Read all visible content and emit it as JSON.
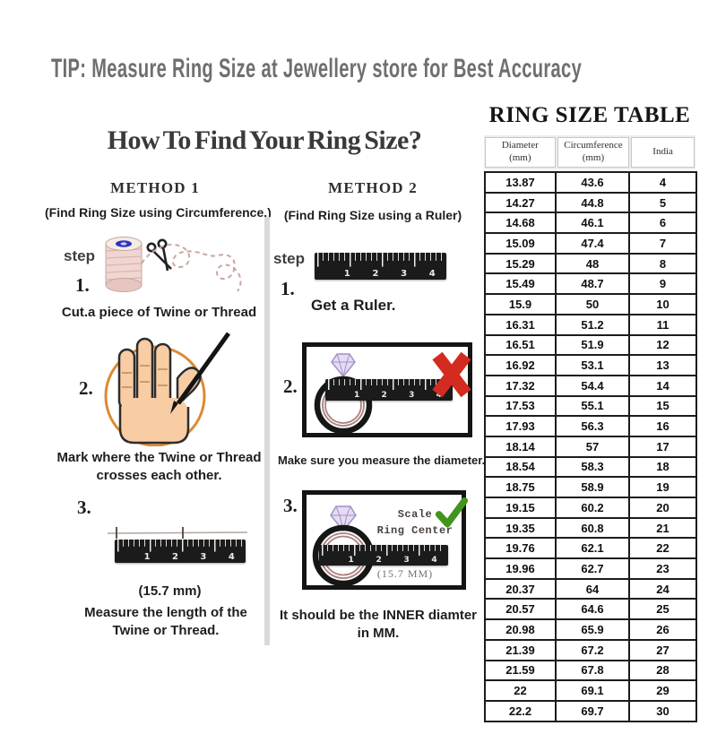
{
  "tip_heading": "TIP: Measure Ring Size at Jewellery store for Best Accuracy",
  "howto": {
    "title": "How To Find Your Ring Size?",
    "method1": {
      "heading": "METHOD 1",
      "subheading": "(Find Ring Size using Circumference.)",
      "step_label": "step",
      "step1_num": "1.",
      "step1_caption": "Cut.a piece of Twine or Thread",
      "step2_num": "2.",
      "step2_caption_line1": "Mark where the Twine or Thread",
      "step2_caption_line2": "crosses each other.",
      "step3_num": "3.",
      "step3_measure": "(15.7 mm)",
      "step3_caption_line1": "Measure the length of the",
      "step3_caption_line2": "Twine or Thread."
    },
    "method2": {
      "heading": "METHOD 2",
      "subheading": "(Find Ring Size using a Ruler)",
      "step_label": "step",
      "step1_num": "1.",
      "step1_caption": "Get a Ruler.",
      "step2_num": "2.",
      "step2_caption": "Make sure you measure the diameter.",
      "step3_num": "3.",
      "scale_line1": "Scale",
      "scale_line2": "Ring Center",
      "inner_measure": "(15.7 MM)",
      "step3_caption_line1": "It should be the INNER diamter",
      "step3_caption_line2": "in MM."
    }
  },
  "ruler": {
    "n1": "1",
    "n2": "2",
    "n3": "3",
    "n4": "4"
  },
  "table": {
    "title": "RING SIZE TABLE",
    "columns": [
      {
        "line1": "Diameter",
        "line2": "(mm)"
      },
      {
        "line1": "Circumference",
        "line2": "(mm)"
      },
      {
        "line1": "India",
        "line2": ""
      }
    ],
    "rows": [
      [
        "13.87",
        "43.6",
        "4"
      ],
      [
        "14.27",
        "44.8",
        "5"
      ],
      [
        "14.68",
        "46.1",
        "6"
      ],
      [
        "15.09",
        "47.4",
        "7"
      ],
      [
        "15.29",
        "48",
        "8"
      ],
      [
        "15.49",
        "48.7",
        "9"
      ],
      [
        "15.9",
        "50",
        "10"
      ],
      [
        "16.31",
        "51.2",
        "11"
      ],
      [
        "16.51",
        "51.9",
        "12"
      ],
      [
        "16.92",
        "53.1",
        "13"
      ],
      [
        "17.32",
        "54.4",
        "14"
      ],
      [
        "17.53",
        "55.1",
        "15"
      ],
      [
        "17.93",
        "56.3",
        "16"
      ],
      [
        "18.14",
        "57",
        "17"
      ],
      [
        "18.54",
        "58.3",
        "18"
      ],
      [
        "18.75",
        "58.9",
        "19"
      ],
      [
        "19.15",
        "60.2",
        "20"
      ],
      [
        "19.35",
        "60.8",
        "21"
      ],
      [
        "19.76",
        "62.1",
        "22"
      ],
      [
        "19.96",
        "62.7",
        "23"
      ],
      [
        "20.37",
        "64",
        "24"
      ],
      [
        "20.57",
        "64.6",
        "25"
      ],
      [
        "20.98",
        "65.9",
        "26"
      ],
      [
        "21.39",
        "67.2",
        "27"
      ],
      [
        "21.59",
        "67.8",
        "28"
      ],
      [
        "22",
        "69.1",
        "29"
      ],
      [
        "22.2",
        "69.7",
        "30"
      ]
    ]
  },
  "colors": {
    "tip_text": "#6f6f6f",
    "heading_text": "#3a3a3a",
    "body_text": "#1e1e1e",
    "red_x": "#d32b1f",
    "green_check": "#43941d",
    "ring_band": "#161616",
    "ring_inner": "#ab8080",
    "orange_circle": "#dd8a33",
    "table_border": "#1c1c1c",
    "divider": "#dadada"
  }
}
